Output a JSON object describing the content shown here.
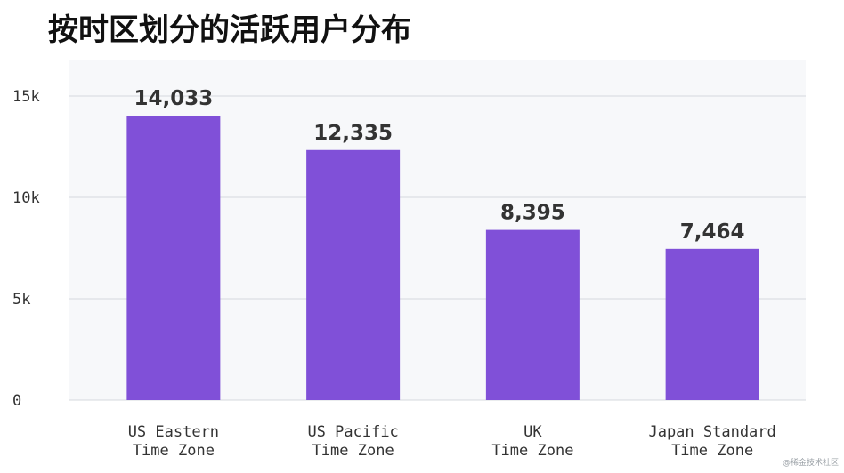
{
  "chart_data": {
    "type": "bar",
    "title": "按时区划分的活跃用户分布",
    "xlabel": "",
    "ylabel": "",
    "categories": [
      [
        "US Eastern",
        "Time Zone"
      ],
      [
        "US Pacific",
        "Time Zone"
      ],
      [
        "UK",
        "Time Zone"
      ],
      [
        "Japan Standard",
        "Time Zone"
      ]
    ],
    "values": [
      14033,
      12335,
      8395,
      7464
    ],
    "data_labels": [
      "14,033",
      "12,335",
      "8,395",
      "7,464"
    ],
    "ylim": [
      0,
      15000
    ],
    "yticks": [
      0,
      5000,
      10000,
      15000
    ],
    "ytick_labels": [
      "0",
      "5k",
      "10k",
      "15k"
    ],
    "grid": true,
    "legend": "none",
    "colors": {
      "bar": "#8050d8",
      "plot_background": "#f7f8fa",
      "grid": "#d6d9de",
      "axis_text": "#333333",
      "label_text": "#333333"
    }
  },
  "watermark": "@稀金技术社区"
}
